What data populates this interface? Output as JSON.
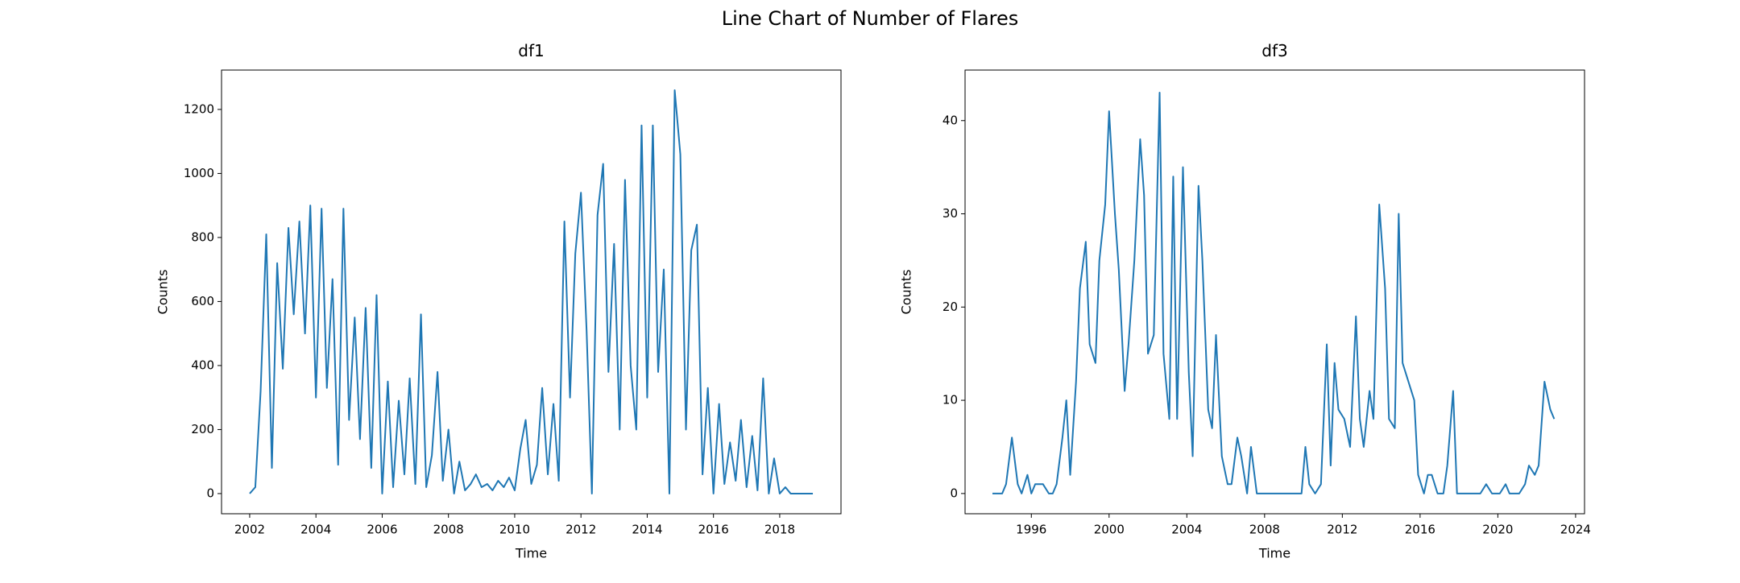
{
  "title": "Line Chart of Number of Flares",
  "chart_data": [
    {
      "type": "line",
      "title": "df1",
      "xlabel": "Time",
      "ylabel": "Counts",
      "x": [
        2002.0,
        2002.17,
        2002.33,
        2002.5,
        2002.67,
        2002.83,
        2003.0,
        2003.17,
        2003.33,
        2003.5,
        2003.67,
        2003.83,
        2004.0,
        2004.17,
        2004.33,
        2004.5,
        2004.67,
        2004.83,
        2005.0,
        2005.17,
        2005.33,
        2005.5,
        2005.67,
        2005.83,
        2006.0,
        2006.17,
        2006.33,
        2006.5,
        2006.67,
        2006.83,
        2007.0,
        2007.17,
        2007.33,
        2007.5,
        2007.67,
        2007.83,
        2008.0,
        2008.17,
        2008.33,
        2008.5,
        2008.67,
        2008.83,
        2009.0,
        2009.17,
        2009.33,
        2009.5,
        2009.67,
        2009.83,
        2010.0,
        2010.17,
        2010.33,
        2010.5,
        2010.67,
        2010.83,
        2011.0,
        2011.17,
        2011.33,
        2011.5,
        2011.67,
        2011.83,
        2012.0,
        2012.17,
        2012.33,
        2012.5,
        2012.67,
        2012.83,
        2013.0,
        2013.17,
        2013.33,
        2013.5,
        2013.67,
        2013.83,
        2014.0,
        2014.17,
        2014.33,
        2014.5,
        2014.67,
        2014.83,
        2015.0,
        2015.17,
        2015.33,
        2015.5,
        2015.67,
        2015.83,
        2016.0,
        2016.17,
        2016.33,
        2016.5,
        2016.67,
        2016.83,
        2017.0,
        2017.17,
        2017.33,
        2017.5,
        2017.67,
        2017.83,
        2018.0,
        2018.17,
        2018.33,
        2018.5,
        2018.67,
        2018.83,
        2019.0
      ],
      "series": [
        {
          "name": "df1",
          "color": "#1f77b4",
          "values": [
            0,
            20,
            320,
            810,
            80,
            720,
            390,
            830,
            560,
            850,
            500,
            900,
            300,
            890,
            330,
            670,
            90,
            890,
            230,
            550,
            170,
            580,
            80,
            620,
            0,
            350,
            20,
            290,
            60,
            360,
            30,
            560,
            20,
            120,
            380,
            40,
            200,
            0,
            100,
            10,
            30,
            60,
            20,
            30,
            10,
            40,
            20,
            50,
            10,
            140,
            230,
            30,
            90,
            330,
            60,
            280,
            40,
            850,
            300,
            750,
            940,
            510,
            0,
            870,
            1030,
            380,
            780,
            200,
            980,
            400,
            200,
            1150,
            300,
            1150,
            380,
            700,
            0,
            1260,
            1060,
            200,
            760,
            840,
            60,
            330,
            0,
            280,
            30,
            160,
            40,
            230,
            20,
            180,
            10,
            360,
            0,
            110,
            0,
            20,
            0,
            0,
            0,
            0,
            0
          ]
        }
      ],
      "xlim": [
        2001.15,
        2019.85
      ],
      "xticks": [
        2002,
        2004,
        2006,
        2008,
        2010,
        2012,
        2014,
        2016,
        2018
      ],
      "ylim": [
        -63,
        1323
      ],
      "yticks": [
        0,
        200,
        400,
        600,
        800,
        1000,
        1200
      ]
    },
    {
      "type": "line",
      "title": "df3",
      "xlabel": "Time",
      "ylabel": "Counts",
      "x": [
        1994.0,
        1994.5,
        1994.7,
        1995.0,
        1995.3,
        1995.5,
        1995.8,
        1996.0,
        1996.2,
        1996.6,
        1996.9,
        1997.1,
        1997.3,
        1997.6,
        1997.8,
        1998.0,
        1998.3,
        1998.5,
        1998.8,
        1999.0,
        1999.3,
        1999.5,
        1999.8,
        2000.0,
        2000.3,
        2000.5,
        2000.8,
        2001.0,
        2001.3,
        2001.6,
        2001.8,
        2002.0,
        2002.3,
        2002.6,
        2002.8,
        2003.1,
        2003.3,
        2003.5,
        2003.8,
        2004.1,
        2004.3,
        2004.6,
        2004.8,
        2005.1,
        2005.3,
        2005.5,
        2005.8,
        2006.1,
        2006.3,
        2006.6,
        2006.8,
        2007.1,
        2007.3,
        2007.6,
        2009.9,
        2010.1,
        2010.3,
        2010.6,
        2010.9,
        2011.2,
        2011.4,
        2011.6,
        2011.8,
        2012.1,
        2012.4,
        2012.7,
        2012.9,
        2013.1,
        2013.4,
        2013.6,
        2013.9,
        2014.2,
        2014.4,
        2014.7,
        2014.9,
        2015.1,
        2015.4,
        2015.7,
        2015.9,
        2016.2,
        2016.4,
        2016.6,
        2016.9,
        2017.2,
        2017.4,
        2017.7,
        2017.9,
        2019.1,
        2019.4,
        2019.7,
        2020.1,
        2020.4,
        2020.6,
        2021.1,
        2021.4,
        2021.6,
        2021.9,
        2022.1,
        2022.4,
        2022.7,
        2022.9
      ],
      "series": [
        {
          "name": "df3",
          "color": "#1f77b4",
          "values": [
            0,
            0,
            1,
            6,
            1,
            0,
            2,
            0,
            1,
            1,
            0,
            0,
            1,
            6,
            10,
            2,
            12,
            22,
            27,
            16,
            14,
            25,
            31,
            41,
            30,
            24,
            11,
            16,
            25,
            38,
            32,
            15,
            17,
            43,
            15,
            8,
            34,
            8,
            35,
            13,
            4,
            33,
            25,
            9,
            7,
            17,
            4,
            1,
            1,
            6,
            4,
            0,
            5,
            0,
            0,
            5,
            1,
            0,
            1,
            16,
            3,
            14,
            9,
            8,
            5,
            19,
            8,
            5,
            11,
            8,
            31,
            22,
            8,
            7,
            30,
            14,
            12,
            10,
            2,
            0,
            2,
            2,
            0,
            0,
            3,
            11,
            0,
            0,
            1,
            0,
            0,
            1,
            0,
            0,
            1,
            3,
            2,
            3,
            12,
            9,
            8
          ]
        }
      ],
      "xlim": [
        1992.59,
        2024.46
      ],
      "xticks": [
        1996,
        2000,
        2004,
        2008,
        2012,
        2016,
        2020,
        2024
      ],
      "ylim": [
        -2.17,
        45.42
      ],
      "yticks": [
        0,
        10,
        20,
        30,
        40
      ]
    }
  ]
}
